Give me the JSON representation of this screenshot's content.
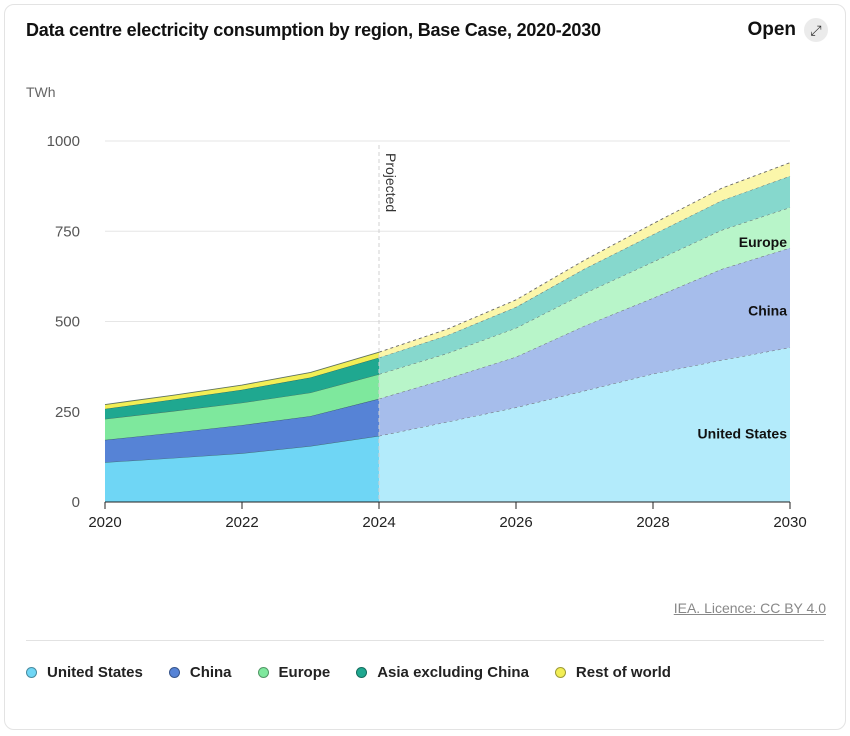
{
  "header": {
    "title": "Data centre electricity consumption by region, Base Case, 2020-2030",
    "open_label": "Open",
    "open_icon": "expand-arrows-icon"
  },
  "footer": {
    "licence": "IEA. Licence: CC BY 4.0"
  },
  "chart_data": {
    "type": "area",
    "stacked": true,
    "unit_label": "TWh",
    "x": [
      2020,
      2021,
      2022,
      2023,
      2024,
      2025,
      2026,
      2027,
      2028,
      2029,
      2030
    ],
    "x_ticks": [
      "2020",
      "2022",
      "2024",
      "2026",
      "2028",
      "2030"
    ],
    "y_ticks": [
      "0",
      "250",
      "500",
      "750",
      "1000"
    ],
    "ylim": [
      0,
      1000
    ],
    "projection_start": 2024,
    "projection_label": "Projected",
    "grid": true,
    "legend_position": "bottom",
    "series": [
      {
        "name": "United States",
        "color": "#6fd6f5",
        "projected_color": "#b3ebfb",
        "values": [
          110,
          122,
          135,
          155,
          183,
          222,
          262,
          308,
          355,
          393,
          428
        ]
      },
      {
        "name": "China",
        "color": "#5683d6",
        "projected_color": "#a6bdeb",
        "values": [
          62,
          70,
          78,
          83,
          103,
          120,
          140,
          180,
          210,
          252,
          276
        ]
      },
      {
        "name": "Europe",
        "color": "#7ee89d",
        "projected_color": "#b8f5c9",
        "values": [
          58,
          60,
          62,
          65,
          68,
          70,
          80,
          90,
          100,
          108,
          112
        ]
      },
      {
        "name": "Asia excluding China",
        "color": "#1fa890",
        "projected_color": "#86d8cd",
        "values": [
          28,
          32,
          36,
          42,
          46,
          50,
          58,
          68,
          76,
          82,
          87
        ]
      },
      {
        "name": "Rest of world",
        "color": "#f2ee55",
        "projected_color": "#fbf6aa",
        "values": [
          12,
          12,
          13,
          14,
          15,
          17,
          20,
          24,
          30,
          34,
          37
        ]
      }
    ],
    "area_labels": [
      {
        "series": "United States",
        "text": "United States",
        "x": 2030,
        "y": 190
      },
      {
        "series": "China",
        "text": "China",
        "x": 2030,
        "y": 530
      },
      {
        "series": "Europe",
        "text": "Europe",
        "x": 2030,
        "y": 720
      }
    ]
  }
}
